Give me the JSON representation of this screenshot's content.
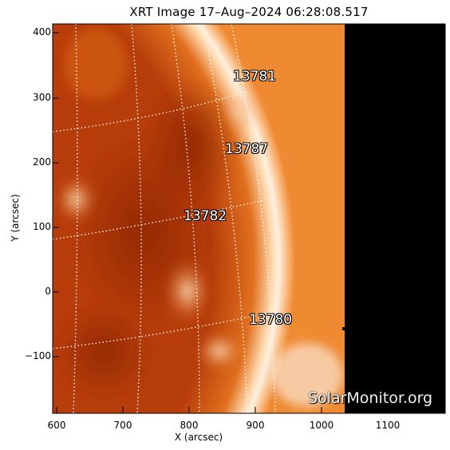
{
  "title": "XRT Image 17–Aug–2024 06:28:08.517",
  "axes": {
    "xlabel": "X (arcsec)",
    "ylabel": "Y (arcsec)",
    "xticks": [
      "600",
      "700",
      "800",
      "900",
      "1000",
      "1100"
    ],
    "yticks": [
      "400",
      "300",
      "200",
      "100",
      "0",
      "−100"
    ]
  },
  "regions": [
    {
      "id": "13781",
      "label": "13781"
    },
    {
      "id": "13787",
      "label": "13787"
    },
    {
      "id": "13782",
      "label": "13782"
    },
    {
      "id": "13780",
      "label": "13780"
    }
  ],
  "watermark": "SolarMonitor.org",
  "colors": {
    "disk_dark": "#a62f08",
    "disk_mid": "#c8500f",
    "limb_bright": "#ffe6c8",
    "corona": "#f28a2a",
    "offdata": "#000000"
  }
}
